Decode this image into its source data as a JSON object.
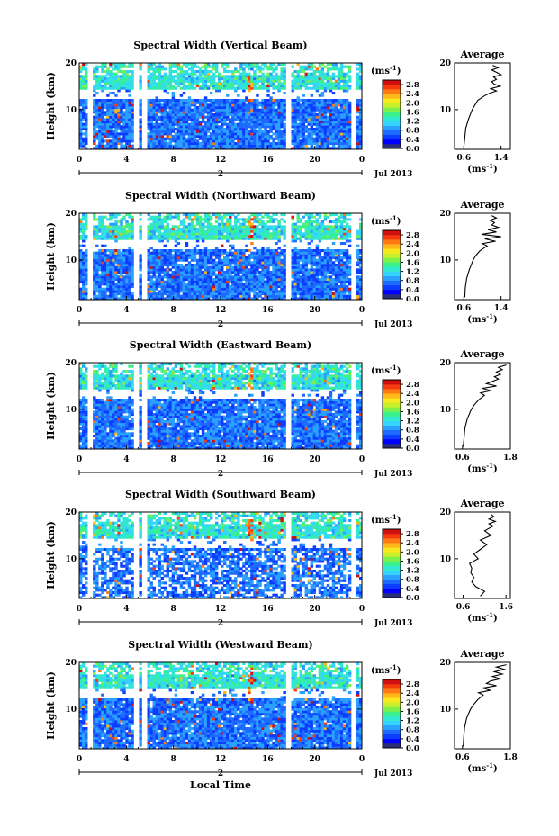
{
  "colorbar": {
    "unit": "(ms",
    "unit_exp": "-1",
    "unit_close": ")",
    "ticks": [
      "2.8",
      "2.4",
      "2.0",
      "1.6",
      "1.2",
      "0.8",
      "0.4",
      "0.0"
    ],
    "range": [
      0.0,
      3.0
    ],
    "colors": [
      "#2b2f7a",
      "#0000ff",
      "#0b3cff",
      "#1e6aff",
      "#2aa0ff",
      "#35d4ff",
      "#30e8d0",
      "#3af08a",
      "#7df04a",
      "#c8f02a",
      "#f8e81e",
      "#ffb81a",
      "#ff7a12",
      "#f53a0e",
      "#d01010"
    ]
  },
  "chart_data": [
    {
      "type": "heatmap",
      "title": "Spectral Width (Vertical Beam)",
      "ylabel": "Height (km)",
      "xlabel": "",
      "x_ticks": [
        "0",
        "4",
        "8",
        "12",
        "16",
        "20",
        "0"
      ],
      "y_ticks": [
        "20",
        "10"
      ],
      "date_label": "Jul 2013",
      "day_label": "2",
      "xlim": [
        0,
        24
      ],
      "ylim": [
        1.5,
        20
      ],
      "profile": {
        "title": "Average",
        "xlabel": "(ms",
        "xlabel_exp": "-1",
        "xlabel_close": ")",
        "x_ticks": [
          "0.6",
          "1.4"
        ],
        "xlim": [
          0.4,
          1.6
        ],
        "y_ticks": [
          "20",
          "10"
        ],
        "height_km": [
          2,
          4,
          6,
          8,
          10,
          11,
          12,
          13,
          13.5,
          14,
          14.5,
          15,
          15.5,
          16,
          16.5,
          17,
          17.5,
          18,
          18.5,
          19,
          19.5
        ],
        "width": [
          0.6,
          0.62,
          0.64,
          0.7,
          0.78,
          0.84,
          0.9,
          1.05,
          1.15,
          1.3,
          1.18,
          1.38,
          1.25,
          1.2,
          1.3,
          1.24,
          1.4,
          1.3,
          1.2,
          1.34,
          1.22
        ]
      }
    },
    {
      "type": "heatmap",
      "title": "Spectral Width (Northward Beam)",
      "ylabel": "Height (km)",
      "xlabel": "",
      "x_ticks": [
        "0",
        "4",
        "8",
        "12",
        "16",
        "20",
        "0"
      ],
      "y_ticks": [
        "20",
        "10"
      ],
      "date_label": "Jul 2013",
      "day_label": "2",
      "xlim": [
        0,
        24
      ],
      "ylim": [
        1.5,
        20
      ],
      "profile": {
        "title": "Average",
        "xlabel": "(ms",
        "xlabel_exp": "-1",
        "xlabel_close": ")",
        "x_ticks": [
          "0.6",
          "1.4"
        ],
        "xlim": [
          0.4,
          1.6
        ],
        "y_ticks": [
          "20",
          "10"
        ],
        "height_km": [
          2,
          4,
          6,
          8,
          10,
          11,
          12,
          13,
          13.5,
          14,
          14.5,
          15,
          15.5,
          16,
          16.5,
          17,
          17.5,
          18,
          18.5,
          19,
          19.5
        ],
        "width": [
          0.62,
          0.63,
          0.66,
          0.72,
          0.8,
          0.86,
          0.95,
          1.1,
          1.0,
          1.28,
          1.05,
          1.4,
          0.98,
          1.3,
          1.12,
          1.34,
          1.2,
          1.26,
          1.16,
          1.3,
          1.2
        ]
      }
    },
    {
      "type": "heatmap",
      "title": "Spectral Width (Eastward Beam)",
      "ylabel": "Height (km)",
      "xlabel": "",
      "x_ticks": [
        "0",
        "4",
        "8",
        "12",
        "16",
        "20",
        "0"
      ],
      "y_ticks": [
        "20",
        "10"
      ],
      "date_label": "Jul 2013",
      "day_label": "2",
      "xlim": [
        0,
        24
      ],
      "ylim": [
        1.5,
        20
      ],
      "profile": {
        "title": "Average",
        "xlabel": "(ms",
        "xlabel_exp": "-1",
        "xlabel_close": ")",
        "x_ticks": [
          "0.6",
          "1.8"
        ],
        "xlim": [
          0.4,
          1.8
        ],
        "y_ticks": [
          "20",
          "10"
        ],
        "height_km": [
          2,
          4,
          6,
          8,
          10,
          11,
          12,
          13,
          13.5,
          14,
          14.5,
          15,
          15.5,
          16,
          16.5,
          17,
          17.5,
          18,
          18.5,
          19,
          19.5
        ],
        "width": [
          0.62,
          0.64,
          0.66,
          0.72,
          0.82,
          0.9,
          1.0,
          1.15,
          1.05,
          1.3,
          1.1,
          1.45,
          1.2,
          1.35,
          1.5,
          1.4,
          1.55,
          1.45,
          1.6,
          1.5,
          1.7
        ]
      }
    },
    {
      "type": "heatmap",
      "title": "Spectral Width (Southward Beam)",
      "ylabel": "Height (km)",
      "xlabel": "",
      "x_ticks": [
        "0",
        "4",
        "8",
        "12",
        "16",
        "20",
        "0"
      ],
      "y_ticks": [
        "20",
        "10"
      ],
      "date_label": "Jul 2013",
      "day_label": "2",
      "xlim": [
        0,
        24
      ],
      "ylim": [
        1.5,
        20
      ],
      "profile": {
        "title": "Average",
        "xlabel": "(ms",
        "xlabel_exp": "-1",
        "xlabel_close": ")",
        "x_ticks": [
          "0.6",
          "1.6"
        ],
        "xlim": [
          0.4,
          1.7
        ],
        "y_ticks": [
          "20",
          "10"
        ],
        "height_km": [
          2,
          3,
          4,
          5,
          6,
          7,
          8,
          9,
          10,
          11,
          12,
          13,
          14,
          15,
          16,
          17,
          17.5,
          18,
          18.5,
          19,
          19.5
        ],
        "width": [
          1.0,
          1.1,
          0.9,
          0.8,
          0.85,
          0.78,
          0.8,
          0.75,
          0.95,
          0.85,
          1.0,
          1.15,
          1.0,
          1.25,
          1.1,
          1.3,
          1.2,
          1.35,
          1.2,
          1.32,
          1.25
        ]
      }
    },
    {
      "type": "heatmap",
      "title": "Spectral Width (Westward Beam)",
      "ylabel": "Height (km)",
      "xlabel": "Local Time",
      "x_ticks": [
        "0",
        "4",
        "8",
        "12",
        "16",
        "20",
        "0"
      ],
      "y_ticks": [
        "20",
        "10"
      ],
      "date_label": "Jul 2013",
      "day_label": "2",
      "xlim": [
        0,
        24
      ],
      "ylim": [
        1.5,
        20
      ],
      "profile": {
        "title": "Average",
        "xlabel": "(ms",
        "xlabel_exp": "-1",
        "xlabel_close": ")",
        "x_ticks": [
          "0.6",
          "1.8"
        ],
        "xlim": [
          0.4,
          1.8
        ],
        "y_ticks": [
          "20",
          "10"
        ],
        "height_km": [
          2,
          4,
          6,
          8,
          10,
          11,
          12,
          13,
          13.5,
          14,
          14.5,
          15,
          15.5,
          16,
          16.5,
          17,
          17.5,
          18,
          18.5,
          19,
          19.5
        ],
        "width": [
          0.62,
          0.63,
          0.65,
          0.7,
          0.8,
          0.88,
          0.98,
          1.12,
          1.0,
          1.3,
          1.1,
          1.45,
          1.2,
          1.3,
          1.55,
          1.35,
          1.6,
          1.4,
          1.65,
          1.45,
          1.7
        ]
      }
    }
  ]
}
